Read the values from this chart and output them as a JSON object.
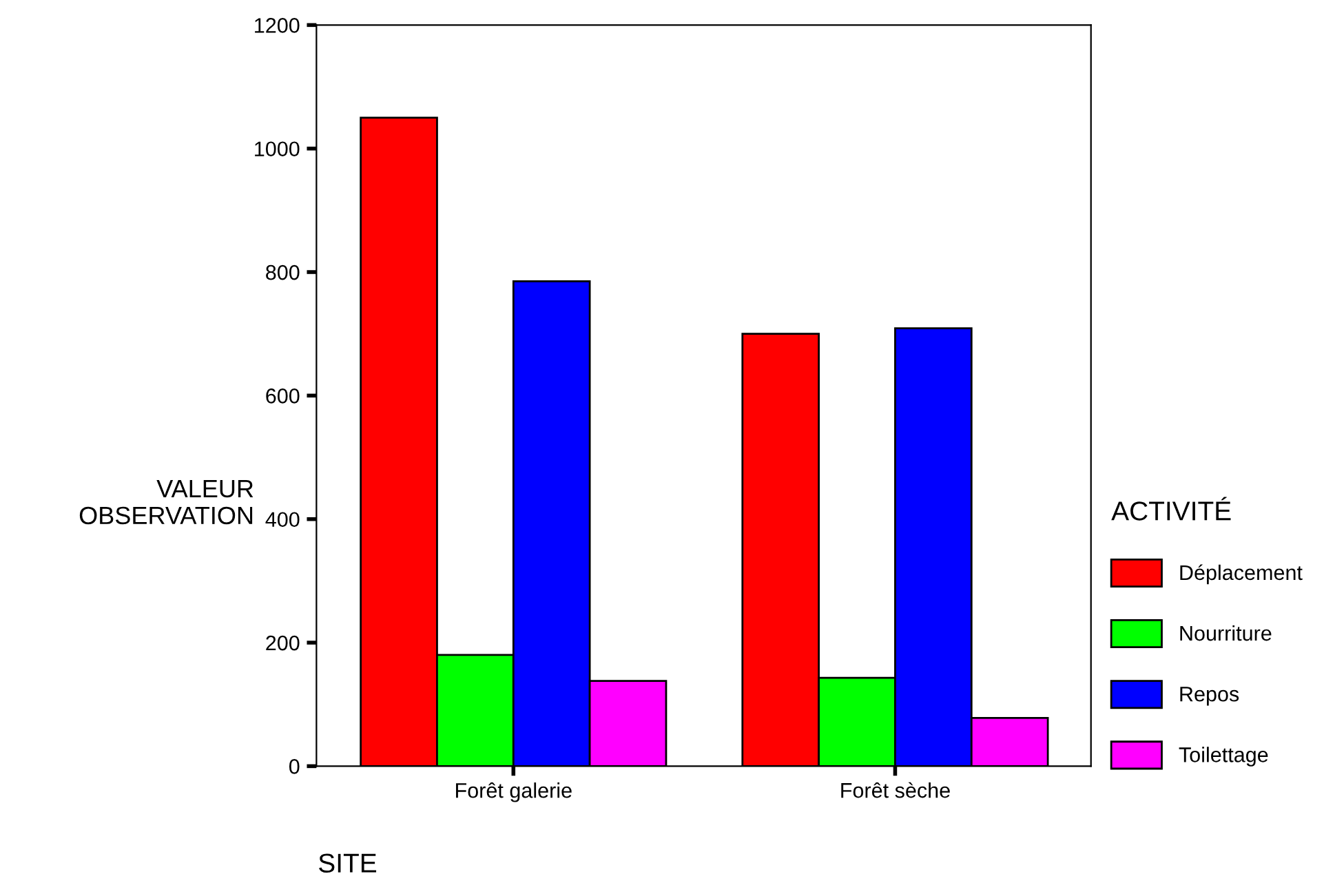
{
  "chart_data": {
    "type": "bar",
    "xlabel": "SITE",
    "ylabel": "VALEUR\nOBSERVATION",
    "legend_title": "ACTIVITÉ",
    "categories": [
      "Forêt galerie",
      "Forêt sèche"
    ],
    "series": [
      {
        "name": "Déplacement",
        "color": "#ff0000",
        "values": [
          1050,
          700
        ]
      },
      {
        "name": "Nourriture",
        "color": "#00ff00",
        "values": [
          180,
          143
        ]
      },
      {
        "name": "Repos",
        "color": "#0000ff",
        "values": [
          785,
          709
        ]
      },
      {
        "name": "Toilettage",
        "color": "#ff00ff",
        "values": [
          138,
          78
        ]
      }
    ],
    "ylim": [
      0,
      1200
    ],
    "yticks": [
      0,
      200,
      400,
      600,
      800,
      1000,
      1200
    ],
    "grid": false,
    "legend": "right"
  }
}
